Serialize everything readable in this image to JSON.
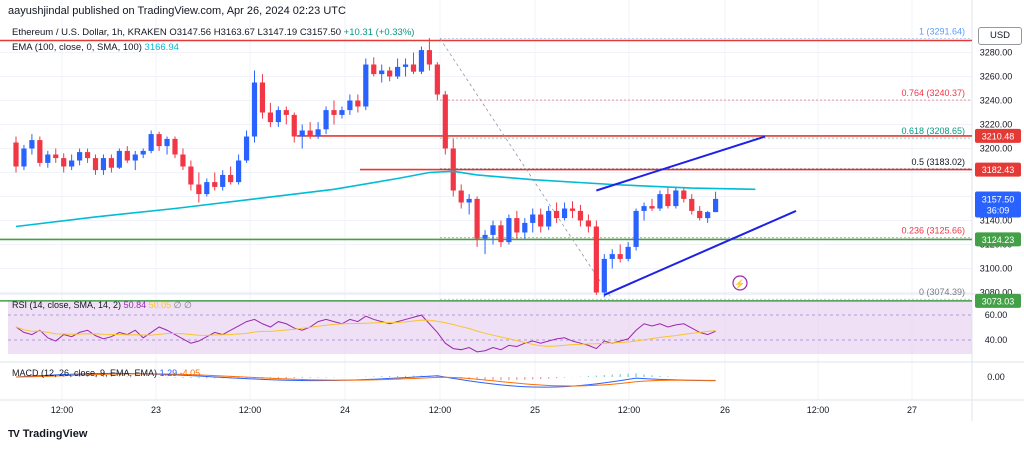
{
  "header": {
    "published": "aayushjindal published on TradingView.com, Apr 26, 2024 02:23 UTC",
    "symbol": "Ethereum / U.S. Dollar, 1h, KRAKEN",
    "ohlc": "O3147.56 H3163.67 L3147.19 C3157.50",
    "change": "+10.31 (+0.33%)",
    "ema_label": "EMA (100, close, 0, SMA, 100)",
    "ema_value": "3166.94",
    "currency": "USD"
  },
  "rsi_label": {
    "name": "RSI (14, close, SMA, 14, 2)",
    "v1": "50.84",
    "v2": "50.05",
    "v3": "∅ ∅"
  },
  "macd_label": {
    "name": "MACD (12, 26, close, 9, EMA, EMA)",
    "v1": "1.29",
    "v2": "-4.05"
  },
  "branding": {
    "name": "TradingView",
    "mark": "TV"
  },
  "colors": {
    "up": "#2962ff",
    "down": "#f23645",
    "ema": "#00bcd4",
    "horizontal_red": "#e53935",
    "horizontal_green": "#43a047",
    "channel": "#1e22e6",
    "rsi_line": "#9c27b0",
    "rsi_ma": "#f7c52f",
    "rsi_band": "#ead6f2",
    "macd_line": "#2962ff",
    "macd_signal": "#ff6d00"
  },
  "chart_data": {
    "type": "candlestick",
    "timeframe": "1h",
    "price_axis_ticks": [
      3280,
      3260,
      3240,
      3220,
      3200,
      3180,
      3160,
      3140,
      3120,
      3100,
      3080
    ],
    "ylim": [
      3068,
      3300
    ],
    "time_axis_labels": [
      "12:00",
      "23",
      "12:00",
      "24",
      "12:00",
      "25",
      "12:00",
      "26",
      "12:00",
      "27"
    ],
    "current_price": "3157.50",
    "countdown": "36:09",
    "horizontal_levels": [
      {
        "value": "3290",
        "color": "#e53935"
      },
      {
        "value": "3210.48",
        "color": "#e53935"
      },
      {
        "value": "3182.43",
        "color": "#e53935"
      },
      {
        "value": "3124.23",
        "color": "#43a047"
      },
      {
        "value": "3073.03",
        "color": "#43a047"
      }
    ],
    "fibonacci": [
      {
        "ratio": "1",
        "price": "3291.64",
        "color": "#5b9cf6"
      },
      {
        "ratio": "0.764",
        "price": "3240.37",
        "color": "#f23645"
      },
      {
        "ratio": "0.618",
        "price": "3208.65",
        "color": "#089981"
      },
      {
        "ratio": "0.5",
        "price": "3183.02",
        "color": "#131722"
      },
      {
        "ratio": "0.236",
        "price": "3125.66",
        "color": "#f23645"
      },
      {
        "ratio": "0",
        "price": "3074.39",
        "color": "#787b86"
      }
    ],
    "channel": {
      "upper": [
        [
          3138,
          3150
        ],
        [
          3210,
          3236
        ]
      ],
      "lower": [
        [
          3078,
          3150
        ],
        [
          3148,
          3241
        ]
      ]
    },
    "candles": [
      [
        3205,
        3210,
        3180,
        3185
      ],
      [
        3185,
        3203,
        3182,
        3200
      ],
      [
        3200,
        3212,
        3195,
        3207
      ],
      [
        3207,
        3210,
        3185,
        3188
      ],
      [
        3188,
        3198,
        3184,
        3195
      ],
      [
        3195,
        3200,
        3188,
        3192
      ],
      [
        3192,
        3196,
        3180,
        3185
      ],
      [
        3185,
        3195,
        3182,
        3190
      ],
      [
        3190,
        3200,
        3186,
        3197
      ],
      [
        3197,
        3200,
        3188,
        3192
      ],
      [
        3192,
        3195,
        3178,
        3182
      ],
      [
        3182,
        3195,
        3178,
        3192
      ],
      [
        3192,
        3195,
        3180,
        3184
      ],
      [
        3184,
        3200,
        3183,
        3198
      ],
      [
        3198,
        3202,
        3188,
        3190
      ],
      [
        3190,
        3198,
        3182,
        3195
      ],
      [
        3195,
        3200,
        3192,
        3198
      ],
      [
        3198,
        3215,
        3196,
        3212
      ],
      [
        3212,
        3214,
        3198,
        3202
      ],
      [
        3202,
        3210,
        3195,
        3208
      ],
      [
        3208,
        3210,
        3192,
        3195
      ],
      [
        3195,
        3200,
        3182,
        3185
      ],
      [
        3185,
        3190,
        3165,
        3170
      ],
      [
        3170,
        3180,
        3155,
        3162
      ],
      [
        3162,
        3175,
        3160,
        3172
      ],
      [
        3172,
        3180,
        3165,
        3168
      ],
      [
        3168,
        3182,
        3165,
        3178
      ],
      [
        3178,
        3185,
        3170,
        3172
      ],
      [
        3172,
        3195,
        3170,
        3190
      ],
      [
        3190,
        3215,
        3188,
        3210
      ],
      [
        3210,
        3265,
        3205,
        3255
      ],
      [
        3255,
        3262,
        3225,
        3230
      ],
      [
        3230,
        3238,
        3218,
        3222
      ],
      [
        3222,
        3235,
        3218,
        3232
      ],
      [
        3232,
        3235,
        3220,
        3228
      ],
      [
        3228,
        3230,
        3205,
        3210
      ],
      [
        3210,
        3220,
        3200,
        3215
      ],
      [
        3215,
        3222,
        3208,
        3210
      ],
      [
        3210,
        3222,
        3208,
        3216
      ],
      [
        3216,
        3235,
        3212,
        3232
      ],
      [
        3232,
        3240,
        3220,
        3228
      ],
      [
        3228,
        3235,
        3225,
        3232
      ],
      [
        3232,
        3245,
        3228,
        3240
      ],
      [
        3240,
        3245,
        3230,
        3235
      ],
      [
        3235,
        3275,
        3232,
        3270
      ],
      [
        3270,
        3276,
        3260,
        3262
      ],
      [
        3262,
        3270,
        3255,
        3265
      ],
      [
        3265,
        3268,
        3256,
        3260
      ],
      [
        3260,
        3275,
        3258,
        3268
      ],
      [
        3268,
        3275,
        3260,
        3270
      ],
      [
        3270,
        3280,
        3262,
        3264
      ],
      [
        3264,
        3285,
        3262,
        3282
      ],
      [
        3282,
        3292,
        3265,
        3270
      ],
      [
        3270,
        3272,
        3240,
        3245
      ],
      [
        3245,
        3248,
        3195,
        3200
      ],
      [
        3200,
        3208,
        3160,
        3165
      ],
      [
        3165,
        3170,
        3150,
        3155
      ],
      [
        3155,
        3162,
        3145,
        3158
      ],
      [
        3158,
        3160,
        3118,
        3125
      ],
      [
        3125,
        3132,
        3112,
        3128
      ],
      [
        3128,
        3140,
        3120,
        3136
      ],
      [
        3136,
        3140,
        3118,
        3122
      ],
      [
        3122,
        3145,
        3120,
        3142
      ],
      [
        3142,
        3148,
        3125,
        3130
      ],
      [
        3130,
        3142,
        3125,
        3138
      ],
      [
        3138,
        3150,
        3130,
        3145
      ],
      [
        3145,
        3150,
        3130,
        3135
      ],
      [
        3135,
        3152,
        3132,
        3148
      ],
      [
        3148,
        3155,
        3138,
        3142
      ],
      [
        3142,
        3155,
        3140,
        3150
      ],
      [
        3150,
        3156,
        3142,
        3148
      ],
      [
        3148,
        3153,
        3135,
        3140
      ],
      [
        3140,
        3145,
        3130,
        3135
      ],
      [
        3135,
        3140,
        3078,
        3080
      ],
      [
        3080,
        3112,
        3076,
        3108
      ],
      [
        3108,
        3116,
        3100,
        3112
      ],
      [
        3112,
        3120,
        3105,
        3108
      ],
      [
        3108,
        3122,
        3106,
        3118
      ],
      [
        3118,
        3150,
        3115,
        3148
      ],
      [
        3148,
        3155,
        3140,
        3152
      ],
      [
        3152,
        3158,
        3148,
        3150
      ],
      [
        3150,
        3165,
        3148,
        3162
      ],
      [
        3162,
        3168,
        3150,
        3152
      ],
      [
        3152,
        3168,
        3150,
        3165
      ],
      [
        3165,
        3168,
        3155,
        3158
      ],
      [
        3158,
        3162,
        3145,
        3148
      ],
      [
        3148,
        3152,
        3140,
        3142
      ],
      [
        3142,
        3148,
        3138,
        3147
      ],
      [
        3147,
        3164,
        3147,
        3158
      ]
    ],
    "ema_100": [
      [
        0,
        3135
      ],
      [
        10,
        3143
      ],
      [
        20,
        3150
      ],
      [
        30,
        3158
      ],
      [
        40,
        3166
      ],
      [
        48,
        3175
      ],
      [
        52,
        3180
      ],
      [
        55,
        3181
      ],
      [
        58,
        3178
      ],
      [
        65,
        3174
      ],
      [
        75,
        3170
      ],
      [
        85,
        3167
      ],
      [
        93,
        3166
      ]
    ]
  }
}
